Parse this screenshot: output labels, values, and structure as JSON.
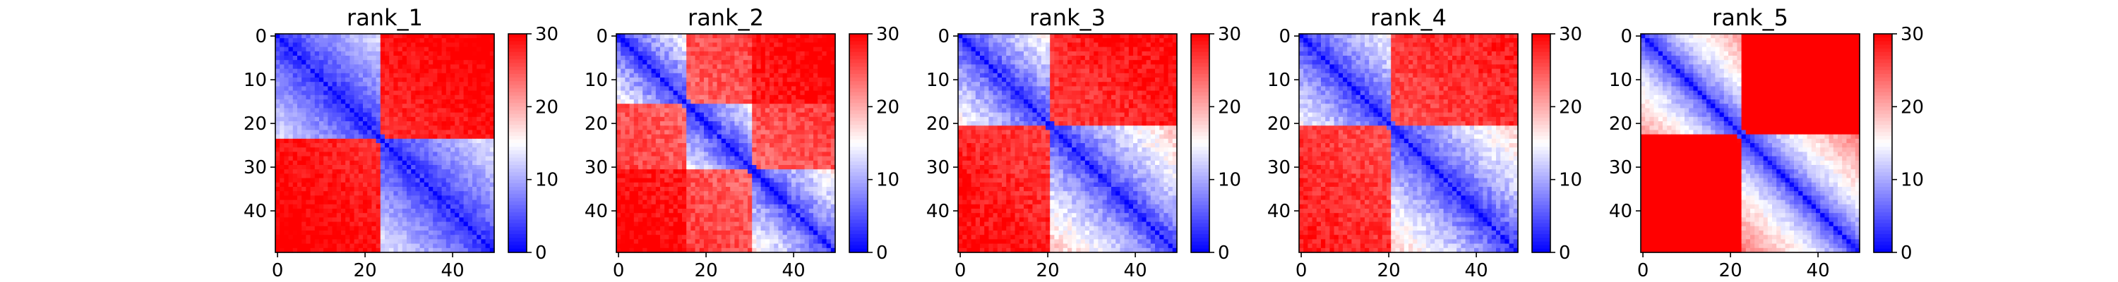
{
  "chart_data": [
    {
      "type": "heatmap",
      "title": "rank_1",
      "xlabel": "",
      "ylabel": "",
      "matrix_size": 50,
      "x_ticks": [
        0,
        20,
        40
      ],
      "y_ticks": [
        0,
        10,
        20,
        30,
        40
      ],
      "colorbar": {
        "colormap": "bwr",
        "vmin": 0,
        "vmax": 30,
        "ticks": [
          0,
          10,
          20,
          30
        ]
      },
      "structure": {
        "domains": [
          [
            0,
            23
          ],
          [
            24,
            49
          ]
        ],
        "intra_domain_gradient": 0.55,
        "inter_domain_distance": 24,
        "noise": 1.6
      }
    },
    {
      "type": "heatmap",
      "title": "rank_2",
      "xlabel": "",
      "ylabel": "",
      "matrix_size": 50,
      "x_ticks": [
        0,
        20,
        40
      ],
      "y_ticks": [
        0,
        10,
        20,
        30,
        40
      ],
      "colorbar": {
        "colormap": "bwr",
        "vmin": 0,
        "vmax": 30,
        "ticks": [
          0,
          10,
          20,
          30
        ]
      },
      "structure": {
        "domains": [
          [
            0,
            15
          ],
          [
            16,
            30
          ],
          [
            31,
            49
          ]
        ],
        "intra_domain_gradient": 0.85,
        "inter_domain_distance": 21,
        "noise": 2.2
      }
    },
    {
      "type": "heatmap",
      "title": "rank_3",
      "xlabel": "",
      "ylabel": "",
      "matrix_size": 50,
      "x_ticks": [
        0,
        20,
        40
      ],
      "y_ticks": [
        0,
        10,
        20,
        30,
        40
      ],
      "colorbar": {
        "colormap": "bwr",
        "vmin": 0,
        "vmax": 30,
        "ticks": [
          0,
          10,
          20,
          30
        ]
      },
      "structure": {
        "domains": [
          [
            0,
            20
          ],
          [
            21,
            49
          ]
        ],
        "intra_domain_gradient": 0.75,
        "inter_domain_distance": 23,
        "noise": 2.0
      }
    },
    {
      "type": "heatmap",
      "title": "rank_4",
      "xlabel": "",
      "ylabel": "",
      "matrix_size": 50,
      "x_ticks": [
        0,
        20,
        40
      ],
      "y_ticks": [
        0,
        10,
        20,
        30,
        40
      ],
      "colorbar": {
        "colormap": "bwr",
        "vmin": 0,
        "vmax": 30,
        "ticks": [
          0,
          10,
          20,
          30
        ]
      },
      "structure": {
        "domains": [
          [
            0,
            20
          ],
          [
            21,
            49
          ]
        ],
        "intra_domain_gradient": 0.72,
        "inter_domain_distance": 22,
        "noise": 2.0
      }
    },
    {
      "type": "heatmap",
      "title": "rank_5",
      "xlabel": "",
      "ylabel": "",
      "matrix_size": 50,
      "x_ticks": [
        0,
        20,
        40
      ],
      "y_ticks": [
        0,
        10,
        20,
        30,
        40
      ],
      "colorbar": {
        "colormap": "bwr",
        "vmin": 0,
        "vmax": 30,
        "ticks": [
          0,
          10,
          20,
          30
        ]
      },
      "structure": {
        "domains": [
          [
            0,
            22
          ],
          [
            23,
            49
          ]
        ],
        "intra_domain_gradient": 1.0,
        "inter_domain_distance": 28,
        "noise": 1.4
      }
    }
  ]
}
